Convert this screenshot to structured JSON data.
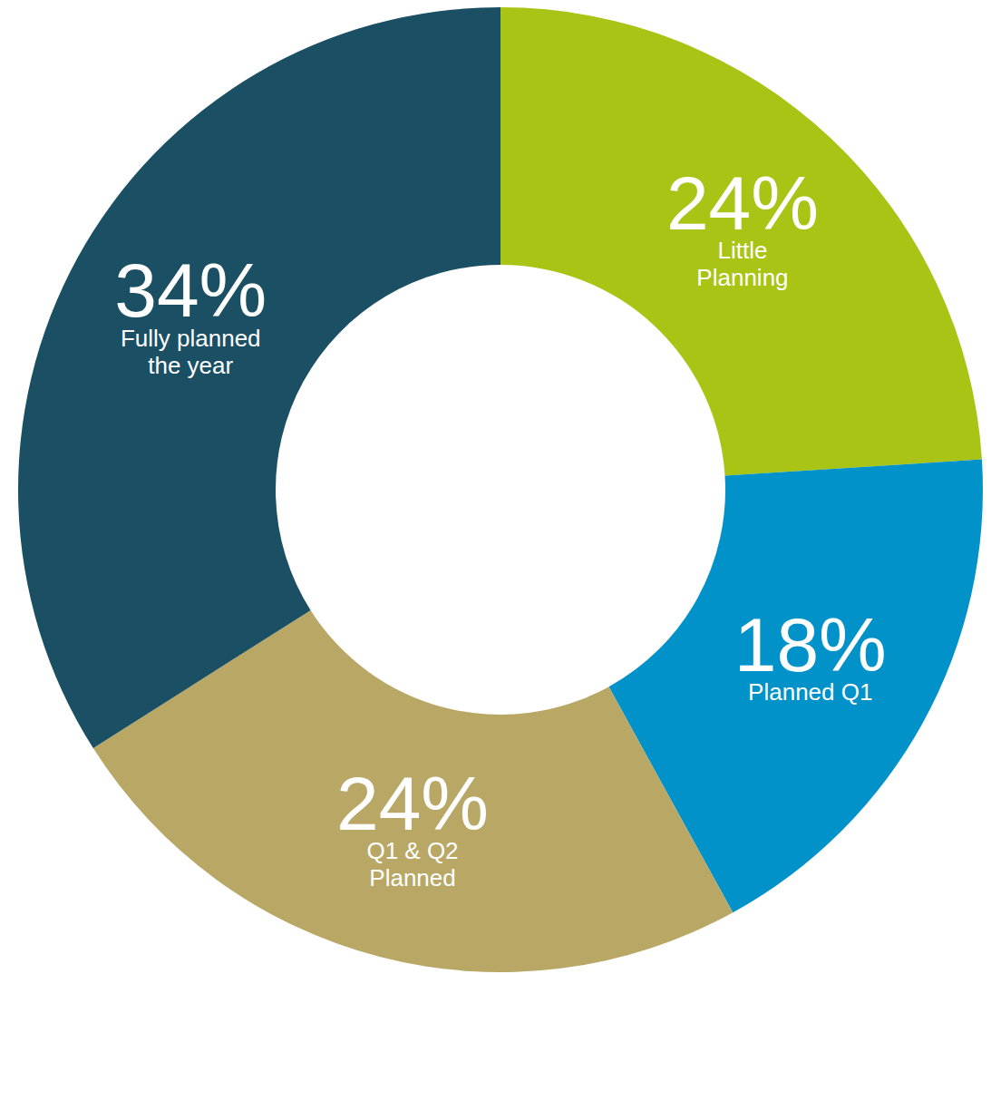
{
  "chart_data": {
    "type": "donut",
    "categories": [
      "Little Planning",
      "Planned Q1",
      "Q1 & Q2 Planned",
      "Fully planned the year"
    ],
    "values": [
      24,
      18,
      24,
      34
    ],
    "value_labels": [
      "24%",
      "18%",
      "24%",
      "34%"
    ],
    "colors": [
      "#a9c414",
      "#0092c9",
      "#b9a766",
      "#1b5064"
    ],
    "data_labels": true
  }
}
